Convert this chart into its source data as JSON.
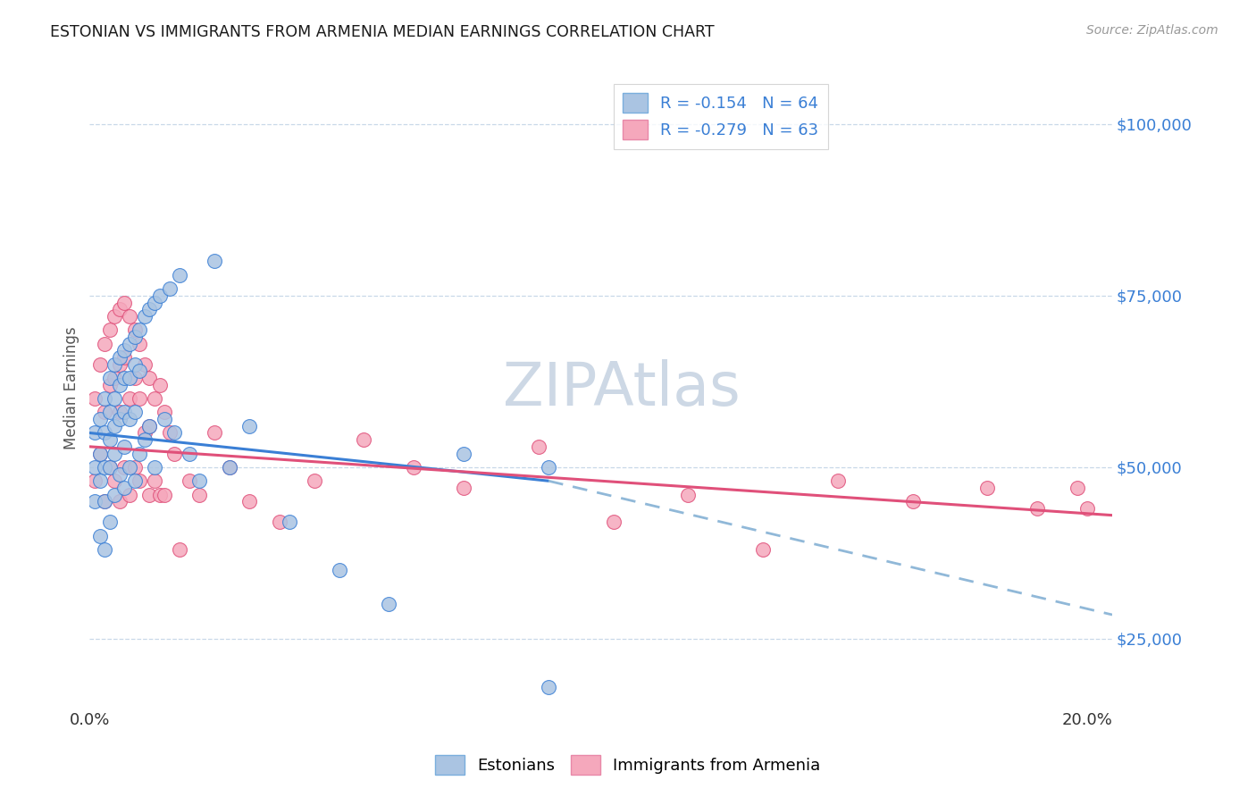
{
  "title": "ESTONIAN VS IMMIGRANTS FROM ARMENIA MEDIAN EARNINGS CORRELATION CHART",
  "source": "Source: ZipAtlas.com",
  "ylabel": "Median Earnings",
  "xlim": [
    0.0,
    0.205
  ],
  "ylim": [
    15000,
    108000
  ],
  "yticks": [
    25000,
    50000,
    75000,
    100000
  ],
  "ytick_labels": [
    "$25,000",
    "$50,000",
    "$75,000",
    "$100,000"
  ],
  "xticks": [
    0.0,
    0.05,
    0.1,
    0.15,
    0.2
  ],
  "xtick_labels": [
    "0.0%",
    "",
    "",
    "",
    "20.0%"
  ],
  "legend_line1": "R = -0.154   N = 64",
  "legend_line2": "R = -0.279   N = 63",
  "color_estonian": "#aac4e2",
  "color_armenia": "#f5a8bc",
  "color_trendline_estonian": "#3a7fd5",
  "color_trendline_armenia": "#e0507a",
  "color_trendline_dashed": "#90b8d8",
  "background_color": "#ffffff",
  "watermark_text": "ZIPAtlas",
  "watermark_color": "#cdd8e5",
  "trendline_estonian_x0": 0.0,
  "trendline_estonian_y0": 55000,
  "trendline_estonian_x1": 0.092,
  "trendline_estonian_y1": 48000,
  "trendline_dashed_x0": 0.092,
  "trendline_dashed_y0": 48000,
  "trendline_dashed_x1": 0.205,
  "trendline_dashed_y1": 28500,
  "trendline_armenia_x0": 0.0,
  "trendline_armenia_y0": 53000,
  "trendline_armenia_x1": 0.205,
  "trendline_armenia_y1": 43000,
  "estonians_x": [
    0.001,
    0.001,
    0.001,
    0.002,
    0.002,
    0.002,
    0.002,
    0.003,
    0.003,
    0.003,
    0.003,
    0.003,
    0.004,
    0.004,
    0.004,
    0.004,
    0.004,
    0.005,
    0.005,
    0.005,
    0.005,
    0.005,
    0.006,
    0.006,
    0.006,
    0.006,
    0.007,
    0.007,
    0.007,
    0.007,
    0.007,
    0.008,
    0.008,
    0.008,
    0.008,
    0.009,
    0.009,
    0.009,
    0.009,
    0.01,
    0.01,
    0.01,
    0.011,
    0.011,
    0.012,
    0.012,
    0.013,
    0.013,
    0.014,
    0.015,
    0.016,
    0.017,
    0.018,
    0.02,
    0.022,
    0.025,
    0.028,
    0.032,
    0.04,
    0.05,
    0.06,
    0.075,
    0.092,
    0.092
  ],
  "estonians_y": [
    55000,
    50000,
    45000,
    57000,
    52000,
    48000,
    40000,
    60000,
    55000,
    50000,
    45000,
    38000,
    63000,
    58000,
    54000,
    50000,
    42000,
    65000,
    60000,
    56000,
    52000,
    46000,
    66000,
    62000,
    57000,
    49000,
    67000,
    63000,
    58000,
    53000,
    47000,
    68000,
    63000,
    57000,
    50000,
    69000,
    65000,
    58000,
    48000,
    70000,
    64000,
    52000,
    72000,
    54000,
    73000,
    56000,
    74000,
    50000,
    75000,
    57000,
    76000,
    55000,
    78000,
    52000,
    48000,
    80000,
    50000,
    56000,
    42000,
    35000,
    30000,
    52000,
    50000,
    18000
  ],
  "armenia_x": [
    0.001,
    0.001,
    0.002,
    0.002,
    0.003,
    0.003,
    0.003,
    0.004,
    0.004,
    0.004,
    0.005,
    0.005,
    0.005,
    0.006,
    0.006,
    0.006,
    0.006,
    0.007,
    0.007,
    0.007,
    0.008,
    0.008,
    0.008,
    0.009,
    0.009,
    0.009,
    0.01,
    0.01,
    0.01,
    0.011,
    0.011,
    0.012,
    0.012,
    0.012,
    0.013,
    0.013,
    0.014,
    0.014,
    0.015,
    0.015,
    0.016,
    0.017,
    0.018,
    0.02,
    0.022,
    0.025,
    0.028,
    0.032,
    0.038,
    0.045,
    0.055,
    0.065,
    0.075,
    0.09,
    0.105,
    0.12,
    0.135,
    0.15,
    0.165,
    0.18,
    0.19,
    0.198,
    0.2
  ],
  "armenia_y": [
    60000,
    48000,
    65000,
    52000,
    68000,
    58000,
    45000,
    70000,
    62000,
    50000,
    72000,
    63000,
    48000,
    73000,
    65000,
    58000,
    45000,
    74000,
    66000,
    50000,
    72000,
    60000,
    46000,
    70000,
    63000,
    50000,
    68000,
    60000,
    48000,
    65000,
    55000,
    63000,
    56000,
    46000,
    60000,
    48000,
    62000,
    46000,
    58000,
    46000,
    55000,
    52000,
    38000,
    48000,
    46000,
    55000,
    50000,
    45000,
    42000,
    48000,
    54000,
    50000,
    47000,
    53000,
    42000,
    46000,
    38000,
    48000,
    45000,
    47000,
    44000,
    47000,
    44000
  ]
}
